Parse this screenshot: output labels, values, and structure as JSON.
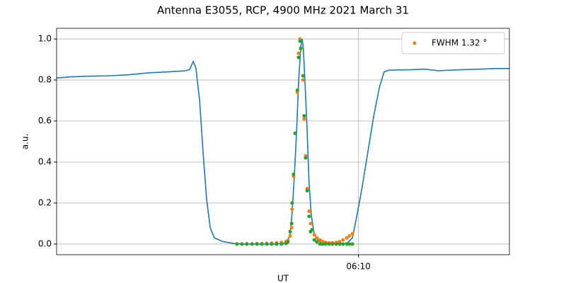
{
  "chart_data": {
    "type": "line",
    "title": "Antenna E3055, RCP, 4900 MHz 2021 March 31",
    "xlabel": "UT",
    "ylabel": "a.u.",
    "xlim": [
      2,
      14
    ],
    "ylim": [
      -0.052,
      1.052
    ],
    "xticks": [
      {
        "value": 10,
        "label": "06:10"
      }
    ],
    "yticks": [
      {
        "value": 0,
        "label": "0.0"
      },
      0.2,
      0.4,
      0.6,
      0.8,
      {
        "value": 1,
        "label": "1.0"
      }
    ],
    "grid": true,
    "legend": "upper right",
    "series": [
      {
        "type": "line",
        "color": "#1f77b4",
        "x": [
          2.0,
          2.375,
          2.75,
          3.31,
          3.875,
          4.44,
          5.0,
          5.41,
          5.525,
          5.62,
          5.69,
          5.79,
          5.88,
          5.975,
          6.07,
          6.18,
          6.41,
          6.69,
          6.97,
          7.625,
          8.0,
          8.11,
          8.19,
          8.24,
          8.3,
          8.36,
          8.41,
          8.47,
          8.51,
          8.54,
          8.58,
          8.64,
          8.69,
          8.75,
          8.825,
          8.94,
          9.125,
          9.69,
          9.84,
          9.97,
          10.1,
          10.25,
          10.4,
          10.55,
          10.68,
          10.81,
          11.375,
          11.75,
          12.125,
          12.69,
          13.25,
          13.625,
          14.0
        ],
        "values": [
          0.81,
          0.815,
          0.818,
          0.82,
          0.825,
          0.835,
          0.84,
          0.845,
          0.85,
          0.89,
          0.86,
          0.7,
          0.45,
          0.22,
          0.08,
          0.03,
          0.012,
          0.003,
          0.0,
          0.0,
          0.002,
          0.01,
          0.05,
          0.15,
          0.33,
          0.55,
          0.78,
          0.96,
          1.0,
          0.95,
          0.8,
          0.55,
          0.3,
          0.14,
          0.05,
          0.015,
          0.003,
          0.003,
          0.03,
          0.15,
          0.28,
          0.45,
          0.62,
          0.76,
          0.84,
          0.848,
          0.85,
          0.853,
          0.845,
          0.85,
          0.853,
          0.856,
          0.856
        ]
      },
      {
        "type": "scatter",
        "name": "FWHM 1.32 °",
        "color": "#ff7f0e",
        "x": [
          6.78,
          6.91,
          7.04,
          7.18,
          7.31,
          7.44,
          7.57,
          7.7,
          7.83,
          7.96,
          8.08,
          8.13,
          8.19,
          8.23,
          8.24,
          8.28,
          8.32,
          8.38,
          8.41,
          8.45,
          8.47,
          8.53,
          8.56,
          8.6,
          8.64,
          8.69,
          8.73,
          8.77,
          8.83,
          8.9,
          8.98,
          9.05,
          9.13,
          9.22,
          9.31,
          9.41,
          9.5,
          9.59,
          9.69,
          9.76,
          9.84
        ],
        "values": [
          0,
          0,
          0.001,
          0.001,
          0.002,
          0.002,
          0.003,
          0.004,
          0.006,
          0.008,
          0.012,
          0.018,
          0.04,
          0.08,
          0.17,
          0.33,
          0.54,
          0.74,
          0.93,
          1.0,
          0.95,
          0.8,
          0.61,
          0.43,
          0.27,
          0.16,
          0.1,
          0.07,
          0.045,
          0.03,
          0.02,
          0.012,
          0.008,
          0.006,
          0.006,
          0.008,
          0.012,
          0.02,
          0.03,
          0.04,
          0.05
        ]
      },
      {
        "type": "scatter",
        "color": "#2ca02c",
        "x": [
          6.78,
          6.91,
          7.04,
          7.18,
          7.31,
          7.44,
          7.57,
          7.7,
          7.83,
          7.96,
          8.08,
          8.13,
          8.19,
          8.23,
          8.24,
          8.28,
          8.32,
          8.38,
          8.41,
          8.45,
          8.47,
          8.53,
          8.56,
          8.6,
          8.64,
          8.69,
          8.73,
          8.77,
          8.83,
          8.9,
          8.98,
          9.05,
          9.13,
          9.22,
          9.31,
          9.41,
          9.5,
          9.59,
          9.69,
          9.76,
          9.84
        ],
        "values": [
          0,
          0,
          0,
          0,
          0,
          0,
          0,
          0,
          0,
          0,
          0.003,
          0.01,
          0.06,
          0.1,
          0.2,
          0.34,
          0.54,
          0.75,
          0.91,
          0.99,
          0.955,
          0.82,
          0.625,
          0.42,
          0.26,
          0.135,
          0.06,
          0.07,
          0.02,
          0.01,
          0,
          0,
          0,
          0,
          0,
          0,
          0,
          0,
          0,
          0,
          0
        ]
      }
    ]
  }
}
